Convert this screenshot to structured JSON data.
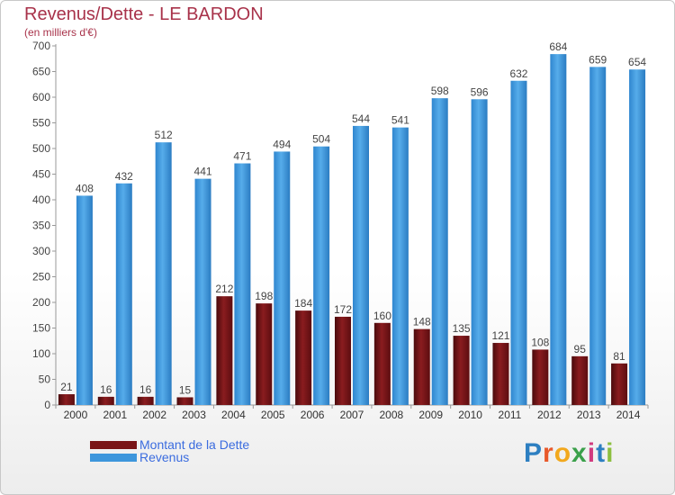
{
  "title": "Revenus/Dette - LE BARDON",
  "subtitle": "(en milliers d'€)",
  "chart_data": {
    "type": "bar",
    "title": "Revenus/Dette - LE BARDON",
    "subtitle": "(en milliers d'€)",
    "categories": [
      "2000",
      "2001",
      "2002",
      "2003",
      "2004",
      "2005",
      "2006",
      "2007",
      "2008",
      "2009",
      "2010",
      "2011",
      "2012",
      "2013",
      "2014"
    ],
    "series": [
      {
        "name": "Montant de la Dette",
        "color": "#7a1416",
        "values": [
          21,
          16,
          16,
          15,
          212,
          198,
          184,
          172,
          160,
          148,
          135,
          121,
          108,
          95,
          81
        ]
      },
      {
        "name": "Revenus",
        "color": "#3d96dc",
        "values": [
          408,
          432,
          512,
          441,
          471,
          494,
          504,
          544,
          541,
          598,
          596,
          632,
          684,
          659,
          654
        ]
      }
    ],
    "ylim": [
      0,
      700
    ],
    "yticks": [
      0,
      50,
      100,
      150,
      200,
      250,
      300,
      350,
      400,
      450,
      500,
      550,
      600,
      650,
      700
    ],
    "grid": false,
    "legend": "bottom-left"
  },
  "legend": {
    "items": [
      {
        "label": "Montant de la Dette",
        "color": "#7a1416"
      },
      {
        "label": "Revenus",
        "color": "#3d96dc"
      }
    ]
  },
  "logo": {
    "letters": [
      "P",
      "r",
      "o",
      "x",
      "i",
      "t",
      "i"
    ],
    "colors": [
      "#2d7fc1",
      "#e8592b",
      "#f2a81d",
      "#3aa04a",
      "#d23a7e",
      "#2d7fc1",
      "#8cbf3f"
    ]
  }
}
